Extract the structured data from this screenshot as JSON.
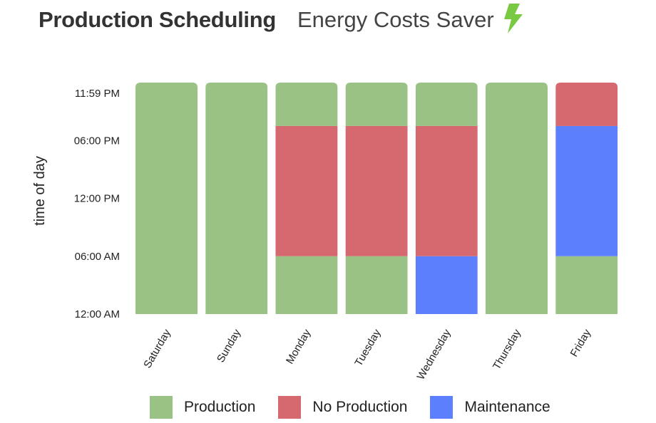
{
  "header": {
    "title": "Production Scheduling",
    "subtitle": "Energy Costs Saver",
    "icon": "lightning-bolt-icon",
    "icon_color": "#7ac943"
  },
  "chart_data": {
    "type": "bar",
    "stacked": true,
    "ylabel": "time of day",
    "xlabel": "",
    "y_unit": "hours",
    "ylim": [
      0,
      24
    ],
    "yticks": [
      {
        "value": 0,
        "label": "12:00 AM"
      },
      {
        "value": 6,
        "label": "06:00 AM"
      },
      {
        "value": 12,
        "label": "12:00 PM"
      },
      {
        "value": 18,
        "label": "06:00 PM"
      },
      {
        "value": 24,
        "label": "11:59 PM"
      }
    ],
    "categories": [
      "Saturday",
      "Sunday",
      "Monday",
      "Tuesday",
      "Wednesday",
      "Thursday",
      "Friday"
    ],
    "colors": {
      "Production": "#9bc285",
      "No Production": "#d6686f",
      "Maintenance": "#5b7ffd"
    },
    "legend": [
      "Production",
      "No Production",
      "Maintenance"
    ],
    "legend_position": "bottom",
    "grid": false,
    "schedule": [
      [
        {
          "state": "Production",
          "start": 0,
          "end": 24
        }
      ],
      [
        {
          "state": "Production",
          "start": 0,
          "end": 24
        }
      ],
      [
        {
          "state": "Production",
          "start": 0,
          "end": 6
        },
        {
          "state": "No Production",
          "start": 6,
          "end": 19.5
        },
        {
          "state": "Production",
          "start": 19.5,
          "end": 24
        }
      ],
      [
        {
          "state": "Production",
          "start": 0,
          "end": 6
        },
        {
          "state": "No Production",
          "start": 6,
          "end": 19.5
        },
        {
          "state": "Production",
          "start": 19.5,
          "end": 24
        }
      ],
      [
        {
          "state": "Maintenance",
          "start": 0,
          "end": 6
        },
        {
          "state": "No Production",
          "start": 6,
          "end": 19.5
        },
        {
          "state": "Production",
          "start": 19.5,
          "end": 24
        }
      ],
      [
        {
          "state": "Production",
          "start": 0,
          "end": 24
        }
      ],
      [
        {
          "state": "Production",
          "start": 0,
          "end": 6
        },
        {
          "state": "Maintenance",
          "start": 6,
          "end": 19.5
        },
        {
          "state": "No Production",
          "start": 19.5,
          "end": 24
        }
      ]
    ]
  }
}
